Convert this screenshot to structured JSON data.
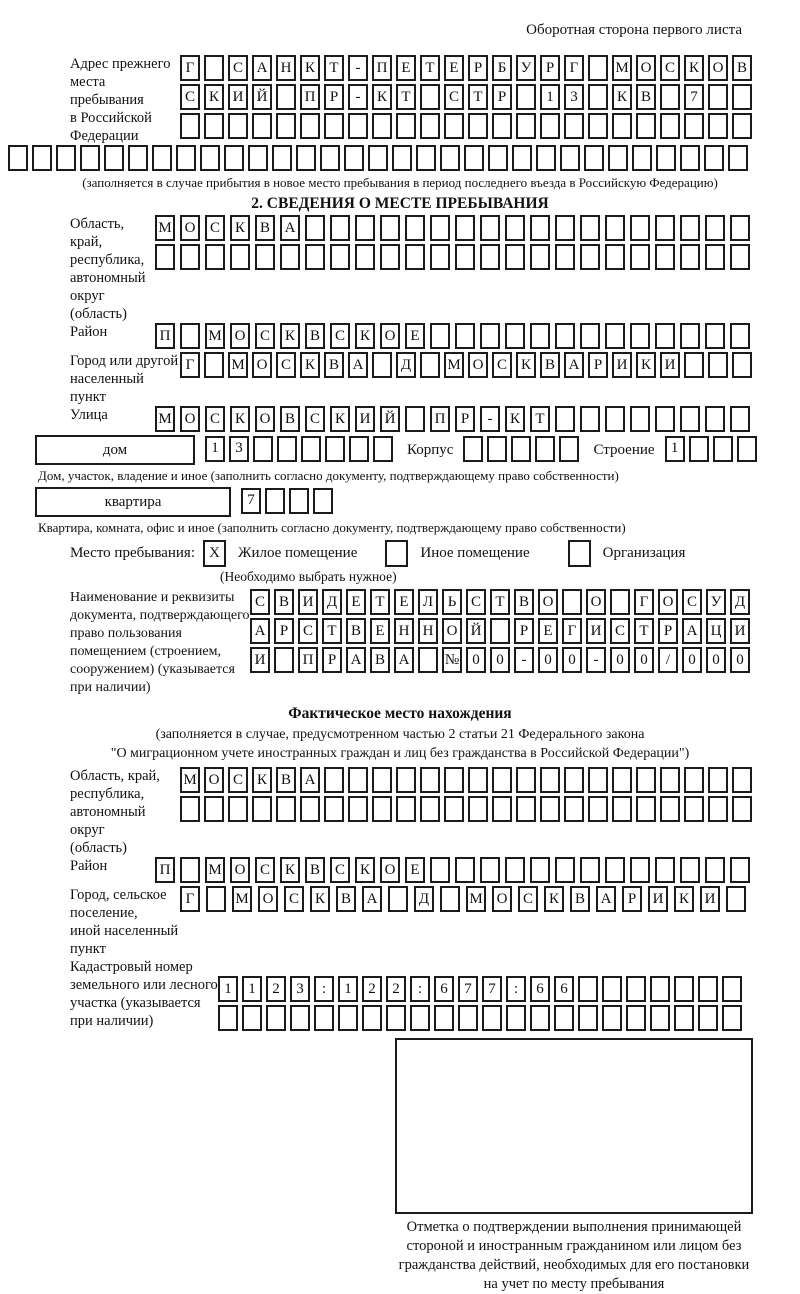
{
  "page": {
    "header_note": "Оборотная сторона первого листа"
  },
  "prev_address": {
    "label": "Адрес прежнего\nместа пребывания\nв Российской\nФедерации",
    "row1": {
      "text": "Г САНКТ-ПЕТЕРБУРГ МОСКОВ",
      "len": 24
    },
    "row2": {
      "text": "СКИЙ ПР-КТ СТР 13 КВ 7",
      "len": 24
    },
    "row3": {
      "text": "",
      "len": 24
    },
    "row4": {
      "text": "",
      "len": 31
    },
    "caption": "(заполняется в случае прибытия в новое место пребывания в период последнего въезда в Российскую Федерацию)"
  },
  "section2": {
    "title": "2. СВЕДЕНИЯ О МЕСТЕ ПРЕБЫВАНИЯ",
    "oblast": {
      "label": "Область, край,\nреспублика,\nавтономный\nокруг (область)",
      "row1": {
        "text": "МОСКВА",
        "len": 24
      },
      "row2": {
        "text": "",
        "len": 24
      }
    },
    "raion": {
      "label": "Район",
      "row": {
        "text": "П МОСКВСКОЕ",
        "len": 24
      }
    },
    "gorod": {
      "label": "Город или другой\nнаселенный пункт",
      "row": {
        "text": "Г МОСКВА Д МОСКВАРИКИ",
        "len": 24
      }
    },
    "ulitsa": {
      "label": "Улица",
      "row": {
        "text": "МОСКОВСКИЙ ПР-КТ",
        "len": 24
      }
    },
    "dom": {
      "box_label": "дом",
      "cells": {
        "text": "13",
        "len": 8
      },
      "korpus_label": "Корпус",
      "korpus_cells": {
        "text": "",
        "len": 5
      },
      "stroenie_label": "Строение",
      "stroenie_cells": {
        "text": "1",
        "len": 4
      }
    },
    "dom_caption": "Дом, участок, владение и иное (заполнить согласно документу, подтверждающему право собственности)",
    "kvartira": {
      "box_label": "квартира",
      "cells": {
        "text": "7",
        "len": 4
      }
    },
    "kvartira_caption": "Квартира, комната, офис и иное (заполнить согласно документу, подтверждающему право собственности)",
    "mesto": {
      "label": "Место пребывания:",
      "zhiloe_mark": "X",
      "zhiloe_label": "Жилое помещение",
      "inoe_label": "Иное помещение",
      "org_label": "Организация",
      "hint": "(Необходимо выбрать нужное)"
    },
    "doc": {
      "label": "Наименование и реквизиты\nдокумента, подтверждающего\nправо пользования\nпомещением (строением,\nсооружением) (указывается\nпри наличии)",
      "row1": {
        "text": "СВИДЕТЕЛЬСТВО О ГОСУД",
        "len": 21
      },
      "row2": {
        "text": "АРСТВЕННОЙ РЕГИСТРАЦИ",
        "len": 21
      },
      "row3": {
        "text": "И ПРАВА №00-00-00/000",
        "len": 21
      }
    }
  },
  "fact": {
    "title": "Фактическое место нахождения",
    "caption": "(заполняется в случае, предусмотренном частью 2 статьи 21 Федерального закона\n\"О миграционном учете иностранных граждан и лиц без гражданства в Российской Федерации\")",
    "oblast": {
      "label": "Область, край,\nреспублика,\nавтономный округ\n(область)",
      "row1": {
        "text": "МОСКВА",
        "len": 24
      },
      "row2": {
        "text": "",
        "len": 24
      }
    },
    "raion": {
      "label": "Район",
      "row": {
        "text": "П МОСКВСКОЕ",
        "len": 24
      }
    },
    "gorod": {
      "label": "Город, сельское поселение,\nиной населенный пункт",
      "row": {
        "text": "Г МОСКВА Д МОСКВАРИКИ",
        "len": 22
      }
    },
    "kadastr": {
      "label": "Кадастровый номер\nземельного или лесного\nучастка (указывается\nпри наличии)",
      "row1": {
        "text": "1123:122:677:66",
        "len": 22
      },
      "row2": {
        "text": "",
        "len": 22
      }
    },
    "stamp_caption": "Отметка о подтверждении выполнения принимающей\nстороной и иностранным гражданином или лицом без\nгражданства действий, необходимых для его постановки\nна учет по месту пребывания"
  }
}
